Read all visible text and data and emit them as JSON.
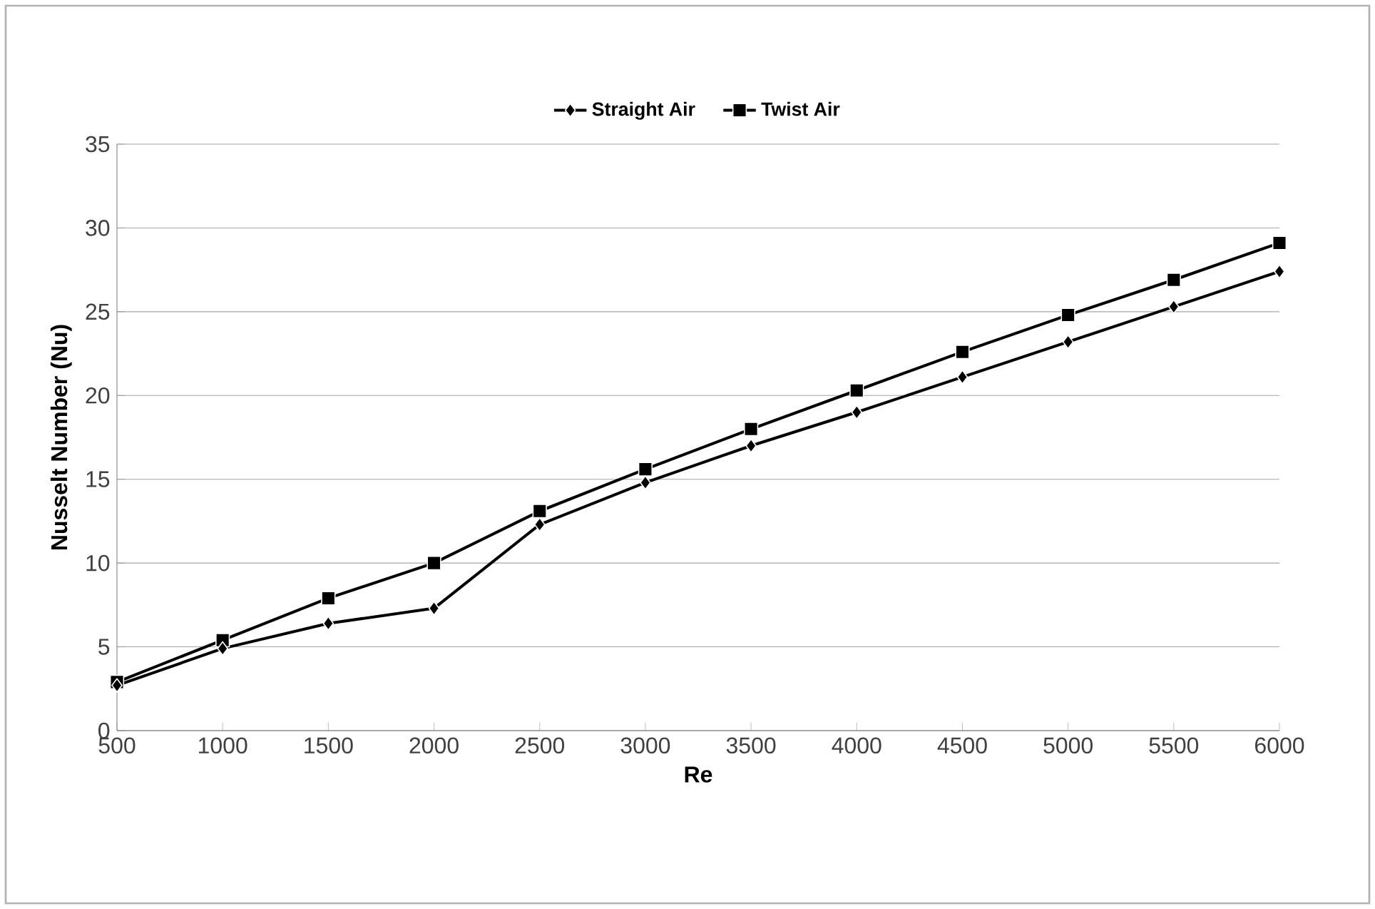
{
  "chart_data": {
    "type": "line",
    "xlabel": "Re",
    "ylabel": "Nusselt Number (Nu)",
    "categories": [
      "500",
      "1000",
      "1500",
      "2000",
      "2500",
      "3000",
      "3500",
      "4000",
      "4500",
      "5000",
      "5500",
      "6000"
    ],
    "series": [
      {
        "name": "Straight Air",
        "color": "#000000",
        "marker": "diamond",
        "values": [
          2.7,
          4.9,
          6.4,
          7.3,
          12.3,
          14.8,
          17.0,
          19.0,
          21.1,
          23.2,
          25.3,
          27.4
        ]
      },
      {
        "name": "Twist Air",
        "color": "#000000",
        "marker": "square",
        "values": [
          2.9,
          5.4,
          7.9,
          10.0,
          13.1,
          15.6,
          18.0,
          20.3,
          22.6,
          24.8,
          26.9,
          29.1
        ]
      }
    ],
    "ylim": [
      0,
      35
    ],
    "yticks": [
      0,
      5,
      10,
      15,
      20,
      25,
      30,
      35
    ],
    "grid": "y",
    "legend": "top",
    "line_style": "solid"
  }
}
